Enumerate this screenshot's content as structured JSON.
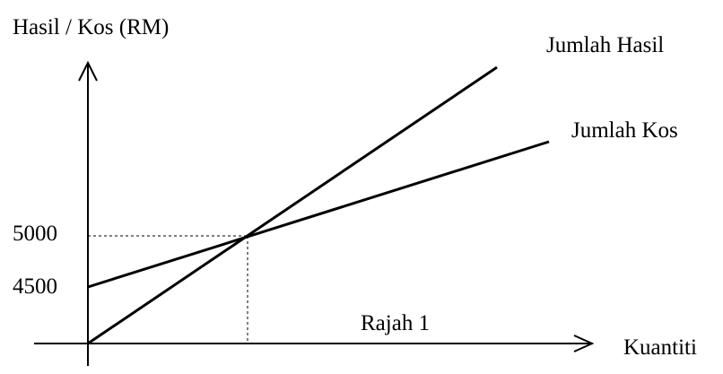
{
  "diagram": {
    "type": "break-even-chart",
    "y_axis_label": "Hasil / Kos (RM)",
    "x_axis_label": "Kuantiti",
    "caption": "Rajah 1",
    "y_ticks": [
      "5000",
      "4500"
    ],
    "lines": [
      {
        "name": "Jumlah Hasil",
        "passes_through": [
          [
            0,
            0
          ],
          [
            1,
            5000
          ]
        ]
      },
      {
        "name": "Jumlah Kos",
        "passes_through": [
          [
            0,
            4500
          ],
          [
            1,
            5000
          ]
        ]
      }
    ],
    "break_even_value": 5000,
    "fixed_cost_value": 4500,
    "guides": "dashed",
    "color": "#000000"
  }
}
